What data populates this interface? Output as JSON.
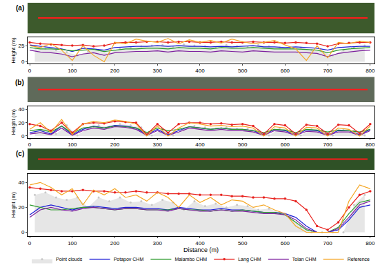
{
  "chart_data": [
    {
      "type": "line",
      "title": "(a)",
      "y_label": "Height (m)",
      "x": [
        0,
        25,
        50,
        75,
        100,
        125,
        150,
        175,
        200,
        225,
        250,
        275,
        300,
        325,
        350,
        375,
        400,
        425,
        450,
        475,
        500,
        525,
        550,
        575,
        600,
        625,
        650,
        675,
        700,
        725,
        750,
        775,
        800
      ],
      "xlim": [
        -5,
        810
      ],
      "xticks": [
        0,
        100,
        200,
        300,
        400,
        500,
        600,
        700,
        800
      ],
      "ylim": [
        -3,
        38
      ],
      "yticks": [
        0,
        25
      ],
      "grid": false,
      "series": [
        {
          "name": "Point clouds",
          "type": "points",
          "color": "#c8c8c8",
          "marker": "circle",
          "x": [
            12,
            37,
            62,
            87,
            112,
            137,
            162,
            187,
            212,
            237,
            262,
            287,
            312,
            337,
            362,
            387,
            412,
            437,
            462,
            487,
            512,
            537,
            562,
            587,
            612,
            637,
            662,
            687,
            712,
            737,
            762,
            787
          ],
          "values": [
            24,
            20,
            18,
            15,
            10,
            16,
            18,
            14,
            20,
            22,
            24,
            25,
            26,
            23,
            27,
            25,
            24,
            22,
            26,
            24,
            23,
            26,
            24,
            22,
            21,
            22,
            18,
            16,
            10,
            18,
            22,
            25
          ]
        },
        {
          "name": "Potapov CHM",
          "type": "line",
          "color": "#1f1fd6",
          "line_style": "solid",
          "values": [
            26,
            24,
            22,
            20,
            16,
            21,
            20,
            18,
            22,
            23,
            24,
            24,
            25,
            24,
            25,
            24,
            24,
            23,
            24,
            23,
            24,
            25,
            23,
            23,
            22,
            23,
            22,
            21,
            18,
            22,
            23,
            24,
            24
          ]
        },
        {
          "name": "Malambo CHM",
          "type": "line",
          "color": "#2a9a2a",
          "line_style": "solid",
          "values": [
            22,
            20,
            20,
            19,
            17,
            18,
            19,
            16,
            18,
            20,
            20,
            21,
            21,
            20,
            22,
            21,
            21,
            20,
            22,
            21,
            21,
            22,
            21,
            20,
            20,
            20,
            19,
            18,
            14,
            18,
            20,
            21,
            22
          ]
        },
        {
          "name": "Lang CHM",
          "type": "line",
          "color": "#e8231f",
          "line_style": "solid",
          "marker": "circle",
          "values": [
            30,
            28,
            27,
            26,
            25,
            26,
            24,
            25,
            29,
            30,
            30,
            31,
            31,
            30,
            31,
            31,
            30,
            30,
            31,
            30,
            30,
            31,
            30,
            30,
            29,
            30,
            29,
            28,
            24,
            28,
            29,
            30,
            30
          ]
        },
        {
          "name": "Tolan CHM",
          "type": "line",
          "color": "#7d1f9e",
          "line_style": "solid",
          "values": [
            18,
            15,
            14,
            12,
            8,
            12,
            14,
            10,
            14,
            15,
            16,
            16,
            17,
            15,
            17,
            16,
            16,
            15,
            17,
            16,
            15,
            17,
            16,
            15,
            15,
            15,
            14,
            13,
            8,
            13,
            15,
            17,
            18
          ]
        },
        {
          "name": "Reference",
          "type": "line",
          "color": "#f5a623",
          "line_style": "solid",
          "values": [
            25,
            22,
            28,
            18,
            2,
            25,
            10,
            0,
            30,
            28,
            35,
            32,
            30,
            36,
            28,
            34,
            30,
            33,
            29,
            35,
            31,
            28,
            30,
            33,
            26,
            20,
            2,
            25,
            6,
            30,
            28,
            32,
            30
          ]
        }
      ]
    },
    {
      "type": "line",
      "title": "(b)",
      "y_label": "Height (m)",
      "x": [
        0,
        25,
        50,
        75,
        100,
        125,
        150,
        175,
        200,
        225,
        250,
        275,
        300,
        325,
        350,
        375,
        400,
        425,
        450,
        475,
        500,
        525,
        550,
        575,
        600,
        625,
        650,
        675,
        700,
        725,
        750,
        775,
        800
      ],
      "xlim": [
        -5,
        810
      ],
      "xticks": [
        0,
        100,
        200,
        300,
        400,
        500,
        600,
        700,
        800
      ],
      "ylim": [
        -3,
        45
      ],
      "yticks": [
        0,
        20,
        40
      ],
      "grid": false,
      "series": [
        {
          "name": "Point clouds",
          "type": "points",
          "color": "#c8c8c8",
          "marker": "circle",
          "x": [
            12,
            37,
            62,
            87,
            112,
            137,
            162,
            187,
            212,
            237,
            262,
            287,
            312,
            337,
            362,
            387,
            412,
            437,
            462,
            487,
            512,
            537,
            562,
            587,
            612,
            637,
            662,
            687,
            712,
            737,
            762,
            787
          ],
          "values": [
            6,
            12,
            3,
            16,
            1,
            12,
            16,
            14,
            18,
            16,
            13,
            1,
            10,
            1,
            9,
            15,
            13,
            11,
            13,
            11,
            11,
            9,
            1,
            11,
            9,
            1,
            10,
            9,
            1,
            9,
            8,
            1
          ]
        },
        {
          "name": "Potapov CHM",
          "type": "line",
          "color": "#1f1fd6",
          "line_style": "solid",
          "values": [
            5,
            8,
            3,
            15,
            2,
            10,
            15,
            12,
            16,
            15,
            12,
            2,
            10,
            2,
            8,
            14,
            12,
            10,
            12,
            10,
            10,
            8,
            2,
            10,
            8,
            2,
            9,
            8,
            2,
            8,
            8,
            2,
            10
          ]
        },
        {
          "name": "Malambo CHM",
          "type": "line",
          "color": "#2a9a2a",
          "line_style": "solid",
          "values": [
            8,
            10,
            6,
            15,
            4,
            12,
            14,
            12,
            15,
            14,
            12,
            5,
            12,
            8,
            10,
            14,
            12,
            10,
            12,
            10,
            10,
            8,
            5,
            10,
            9,
            5,
            10,
            9,
            6,
            9,
            8,
            6,
            10
          ]
        },
        {
          "name": "Lang CHM",
          "type": "line",
          "color": "#e8231f",
          "line_style": "solid",
          "marker": "circle",
          "values": [
            18,
            15,
            8,
            20,
            5,
            18,
            20,
            19,
            22,
            21,
            20,
            2,
            18,
            5,
            18,
            20,
            20,
            18,
            19,
            17,
            18,
            15,
            3,
            18,
            16,
            3,
            17,
            15,
            3,
            17,
            16,
            4,
            18
          ]
        },
        {
          "name": "Tolan CHM",
          "type": "line",
          "color": "#7d1f9e",
          "line_style": "solid",
          "values": [
            3,
            5,
            2,
            12,
            1,
            8,
            12,
            10,
            14,
            13,
            10,
            1,
            8,
            1,
            6,
            12,
            10,
            8,
            10,
            8,
            8,
            6,
            1,
            8,
            6,
            1,
            7,
            6,
            1,
            6,
            6,
            1,
            8
          ]
        },
        {
          "name": "Reference",
          "type": "line",
          "color": "#f5a623",
          "line_style": "solid",
          "values": [
            10,
            20,
            5,
            25,
            2,
            18,
            22,
            20,
            24,
            22,
            18,
            0,
            15,
            0,
            12,
            20,
            18,
            15,
            16,
            14,
            15,
            12,
            0,
            14,
            12,
            0,
            13,
            12,
            0,
            12,
            10,
            0,
            15
          ]
        }
      ]
    },
    {
      "type": "line",
      "title": "(c)",
      "x_label": "Distance (m)",
      "y_label": "Height (m)",
      "legend": "bottom",
      "x": [
        0,
        25,
        50,
        75,
        100,
        125,
        150,
        175,
        200,
        225,
        250,
        275,
        300,
        325,
        350,
        375,
        400,
        425,
        450,
        475,
        500,
        525,
        550,
        575,
        600,
        625,
        650,
        675,
        700,
        725,
        750,
        775,
        800
      ],
      "xlim": [
        -5,
        810
      ],
      "xticks": [
        0,
        100,
        200,
        300,
        400,
        500,
        600,
        700,
        800
      ],
      "ylim": [
        -3,
        47
      ],
      "yticks": [
        0,
        20,
        40
      ],
      "grid": false,
      "series": [
        {
          "name": "Point clouds",
          "type": "points",
          "color": "#c8c8c8",
          "marker": "circle",
          "x": [
            12,
            37,
            62,
            87,
            112,
            137,
            162,
            187,
            212,
            237,
            262,
            287,
            312,
            337,
            362,
            387,
            412,
            437,
            462,
            487,
            512,
            537,
            562,
            587,
            612,
            637,
            662,
            687,
            712,
            737,
            762,
            787
          ],
          "values": [
            30,
            32,
            28,
            26,
            28,
            20,
            28,
            25,
            28,
            24,
            25,
            22,
            26,
            24,
            18,
            25,
            21,
            23,
            20,
            22,
            21,
            18,
            19,
            16,
            13,
            4,
            0,
            0,
            0,
            0,
            22,
            30
          ]
        },
        {
          "name": "Potapov CHM",
          "type": "line",
          "color": "#1f1fd6",
          "line_style": "solid",
          "values": [
            14,
            20,
            22,
            20,
            18,
            20,
            21,
            20,
            19,
            20,
            20,
            19,
            19,
            18,
            20,
            19,
            18,
            18,
            19,
            18,
            18,
            17,
            16,
            16,
            15,
            12,
            5,
            0,
            0,
            2,
            10,
            20,
            22
          ]
        },
        {
          "name": "Malambo CHM",
          "type": "line",
          "color": "#2a9a2a",
          "line_style": "solid",
          "values": [
            22,
            20,
            18,
            18,
            19,
            20,
            20,
            19,
            18,
            19,
            19,
            18,
            18,
            18,
            19,
            18,
            18,
            17,
            18,
            17,
            18,
            17,
            16,
            16,
            14,
            8,
            2,
            0,
            0,
            4,
            15,
            24,
            26
          ]
        },
        {
          "name": "Lang CHM",
          "type": "line",
          "color": "#e8231f",
          "line_style": "solid",
          "marker": "circle",
          "values": [
            36,
            35,
            34,
            33,
            33,
            34,
            33,
            33,
            32,
            32,
            33,
            32,
            32,
            31,
            31,
            31,
            30,
            30,
            30,
            29,
            29,
            28,
            28,
            27,
            27,
            25,
            18,
            5,
            2,
            8,
            20,
            30,
            33
          ]
        },
        {
          "name": "Tolan CHM",
          "type": "line",
          "color": "#7d1f9e",
          "line_style": "solid",
          "values": [
            12,
            18,
            20,
            18,
            17,
            19,
            20,
            19,
            18,
            19,
            19,
            18,
            18,
            17,
            19,
            18,
            17,
            17,
            18,
            17,
            17,
            16,
            15,
            15,
            14,
            10,
            3,
            0,
            0,
            3,
            12,
            22,
            25
          ]
        },
        {
          "name": "Reference",
          "type": "line",
          "color": "#f5a623",
          "line_style": "solid",
          "values": [
            38,
            40,
            36,
            30,
            35,
            22,
            34,
            30,
            35,
            28,
            30,
            25,
            32,
            28,
            20,
            30,
            24,
            28,
            22,
            26,
            25,
            20,
            22,
            18,
            15,
            5,
            0,
            0,
            0,
            0,
            25,
            38,
            35
          ]
        }
      ]
    }
  ]
}
